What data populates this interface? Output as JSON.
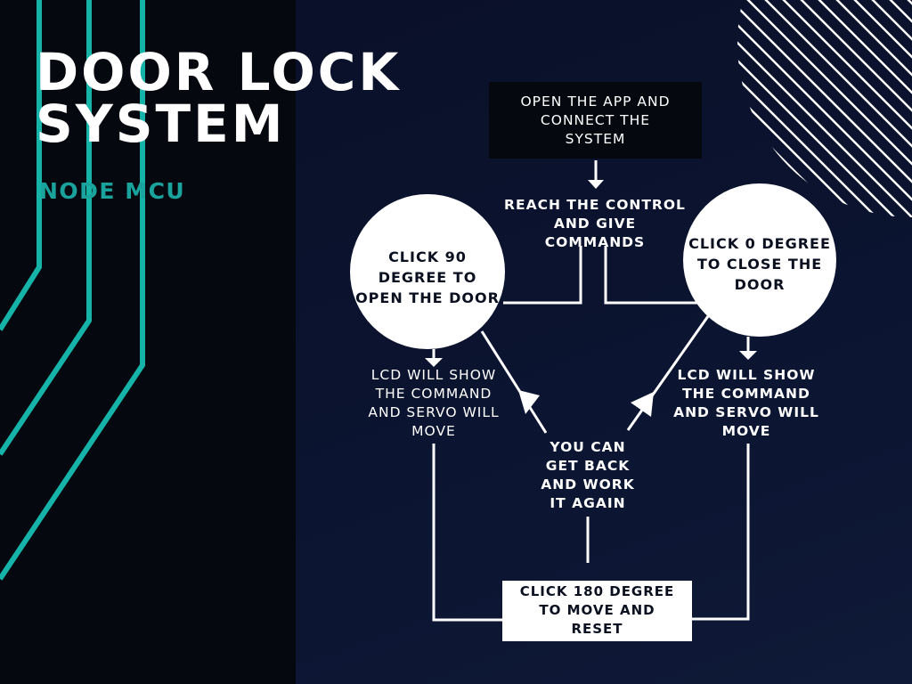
{
  "title": "DOOR LOCK\nSYSTEM",
  "subtitle": "NODE MCU",
  "colors": {
    "accent": "#1aa39c",
    "background": "#0a1029",
    "box_dark": "#05080f",
    "box_light": "#ffffff"
  },
  "steps": {
    "open_app": "OPEN THE APP AND\nCONNECT THE\nSYSTEM",
    "reach_control": "REACH THE CONTROL\nAND GIVE\nCOMMANDS",
    "click_90": "CLICK 90\nDEGREE TO\nOPEN THE DOOR",
    "click_0": "CLICK 0 DEGREE\nTO CLOSE THE\nDOOR",
    "lcd_left": "LCD WILL SHOW\nTHE COMMAND\nAND SERVO WILL\nMOVE",
    "lcd_right": "LCD WILL SHOW\nTHE COMMAND\nAND SERVO WILL\nMOVE",
    "get_back": "YOU CAN\nGET BACK\nAND WORK\nIT AGAIN",
    "click_180": "CLICK 180 DEGREE\nTO MOVE  AND\nRESET"
  }
}
